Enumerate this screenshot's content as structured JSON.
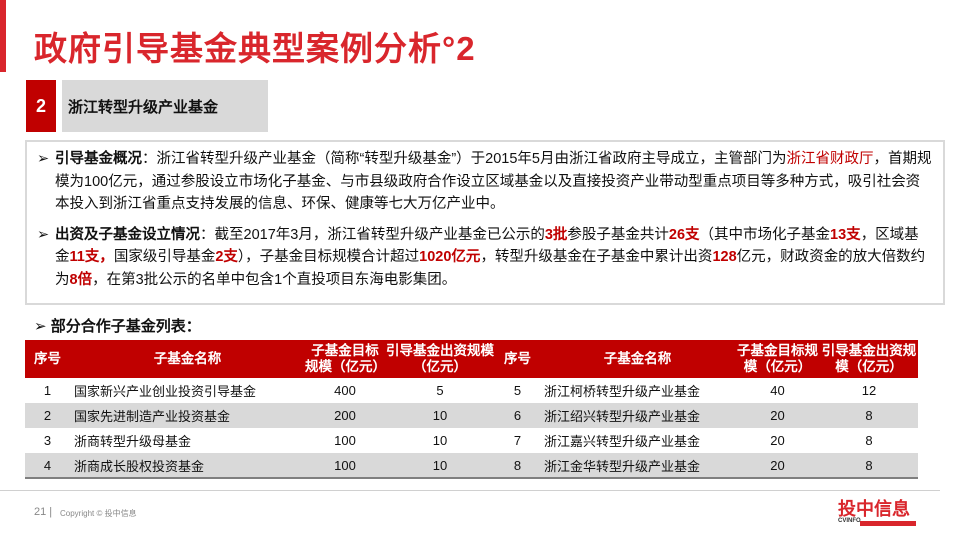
{
  "title": "政府引导基金典型案例分析°2",
  "section": {
    "number": "2",
    "label": "浙江转型升级产业基金"
  },
  "paragraphs": [
    [
      {
        "t": "引导基金概况",
        "b": 1
      },
      {
        "t": "：浙江省转型升级产业基金（简称“转型升级基金”）于2015年5月由浙江省政府主导成立，主管部门为"
      },
      {
        "t": "浙江省财政厅",
        "r": 1
      },
      {
        "t": "，首期规模为100亿元，通过参股设立市场化子基金、与市县级政府合作设立区域基金以及直接投资产业带动型重点项目等多种方式，吸引社会资本投入到浙江省重点支持发展的信息、环保、健康等七大万亿产业中。"
      }
    ],
    [
      {
        "t": "出资及子基金设立情况",
        "b": 1
      },
      {
        "t": "：截至2017年3月，浙江省转型升级产业基金已公示的"
      },
      {
        "t": "3批",
        "b": 1,
        "r": 1
      },
      {
        "t": "参股子基金共计"
      },
      {
        "t": "26支",
        "b": 1,
        "r": 1
      },
      {
        "t": "（其中市场化子基金"
      },
      {
        "t": "13支",
        "b": 1,
        "r": 1
      },
      {
        "t": "，区域基金"
      },
      {
        "t": "11支",
        "b": 1,
        "r": 1
      },
      {
        "t": "，",
        "b": 1,
        "r": 1
      },
      {
        "t": "国家级引导基金"
      },
      {
        "t": "2支",
        "b": 1,
        "r": 1
      },
      {
        "t": "），子基金目标规模合计超过"
      },
      {
        "t": "1020亿元",
        "b": 1,
        "r": 1
      },
      {
        "t": "，转型升级基金在子基金中累计出资"
      },
      {
        "t": "128",
        "b": 1,
        "r": 1
      },
      {
        "t": "亿元，财政资金的放大倍数约为"
      },
      {
        "t": "8倍",
        "b": 1,
        "r": 1
      },
      {
        "t": "，在第3批公示的名单中包含1个直投项目东海电影集团。"
      }
    ]
  ],
  "list_heading": "部分合作子基金列表：",
  "table": {
    "headers": [
      "序号",
      "子基金名称",
      "子基金目标规模（亿元）",
      "引导基金出资规模（亿元）",
      "序号",
      "子基金名称",
      "子基金目标规模（亿元）",
      "引导基金出资规模（亿元）"
    ],
    "rows": [
      [
        "1",
        "国家新兴产业创业投资引导基金",
        "400",
        "5",
        "5",
        "浙江柯桥转型升级产业基金",
        "40",
        "12"
      ],
      [
        "2",
        "国家先进制造产业投资基金",
        "200",
        "10",
        "6",
        "浙江绍兴转型升级产业基金",
        "20",
        "8"
      ],
      [
        "3",
        "浙商转型升级母基金",
        "100",
        "10",
        "7",
        "浙江嘉兴转型升级产业基金",
        "20",
        "8"
      ],
      [
        "4",
        "浙商成长股权投资基金",
        "100",
        "10",
        "8",
        "浙江金华转型升级产业基金",
        "20",
        "8"
      ]
    ]
  },
  "footer": {
    "page": "21",
    "copyright": "Copyright © 投中信息",
    "logo": "投中信息",
    "logo_sub": "CVINFO"
  },
  "colors": {
    "accent": "#c00000",
    "title": "#d9262c",
    "row_alt": "#d9d9d9"
  }
}
